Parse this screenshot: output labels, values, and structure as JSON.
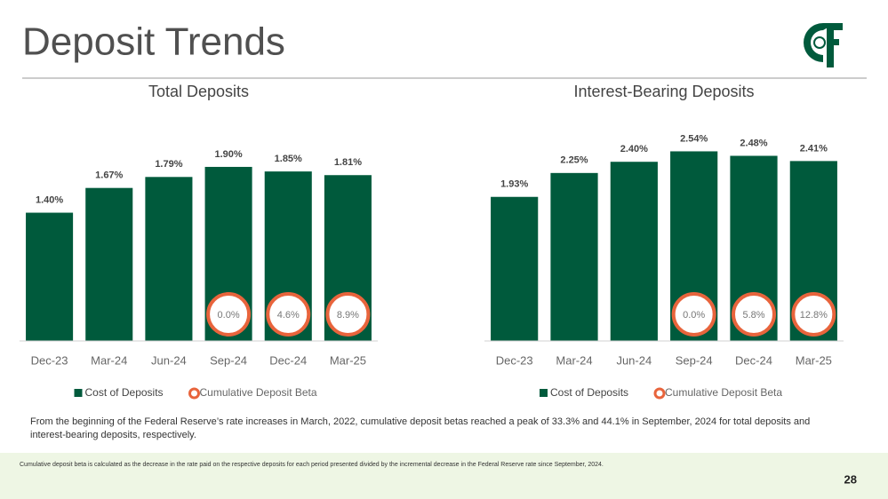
{
  "title": "Deposit Trends",
  "chart_data": [
    {
      "type": "bar",
      "title": "Total Deposits",
      "categories": [
        "Dec-23",
        "Mar-24",
        "Jun-24",
        "Sep-24",
        "Dec-24",
        "Mar-25"
      ],
      "ylim": [
        0,
        2.2
      ],
      "series": [
        {
          "name": "Cost of Deposits",
          "color": "#005a3c",
          "values": [
            1.4,
            1.67,
            1.79,
            1.9,
            1.85,
            1.81
          ],
          "value_labels": [
            "1.40%",
            "1.67%",
            "1.79%",
            "1.90%",
            "1.85%",
            "1.81%"
          ]
        },
        {
          "name": "Cumulative Deposit Beta",
          "color": "#e8643c",
          "values": [
            null,
            null,
            null,
            0,
            4.6,
            8.9
          ],
          "value_labels": [
            null,
            null,
            null,
            "0.0%",
            "4.6%",
            "8.9%"
          ]
        }
      ]
    },
    {
      "type": "bar",
      "title": "Interest-Bearing Deposits",
      "categories": [
        "Dec-23",
        "Mar-24",
        "Jun-24",
        "Sep-24",
        "Dec-24",
        "Mar-25"
      ],
      "ylim": [
        0,
        2.7
      ],
      "series": [
        {
          "name": "Cost of Deposits",
          "color": "#005a3c",
          "values": [
            1.93,
            2.25,
            2.4,
            2.54,
            2.48,
            2.41
          ],
          "value_labels": [
            "1.93%",
            "2.25%",
            "2.40%",
            "2.54%",
            "2.48%",
            "2.41%"
          ]
        },
        {
          "name": "Cumulative Deposit Beta",
          "color": "#e8643c",
          "values": [
            null,
            null,
            null,
            0,
            5.8,
            12.8
          ],
          "value_labels": [
            null,
            null,
            null,
            "0.0%",
            "5.8%",
            "12.8%"
          ]
        }
      ]
    }
  ],
  "note": "From the beginning of the Federal Reserve’s rate increases in March, 2022, cumulative deposit betas reached a peak of 33.3% and 44.1% in September, 2024 for total deposits and interest-bearing deposits, respectively.",
  "footnote": "Cumulative deposit beta is calculated as the decrease in the rate paid on the respective deposits for each period presented divided by the incremental decrease in the Federal Reserve rate since September, 2024.",
  "page_number": 28
}
